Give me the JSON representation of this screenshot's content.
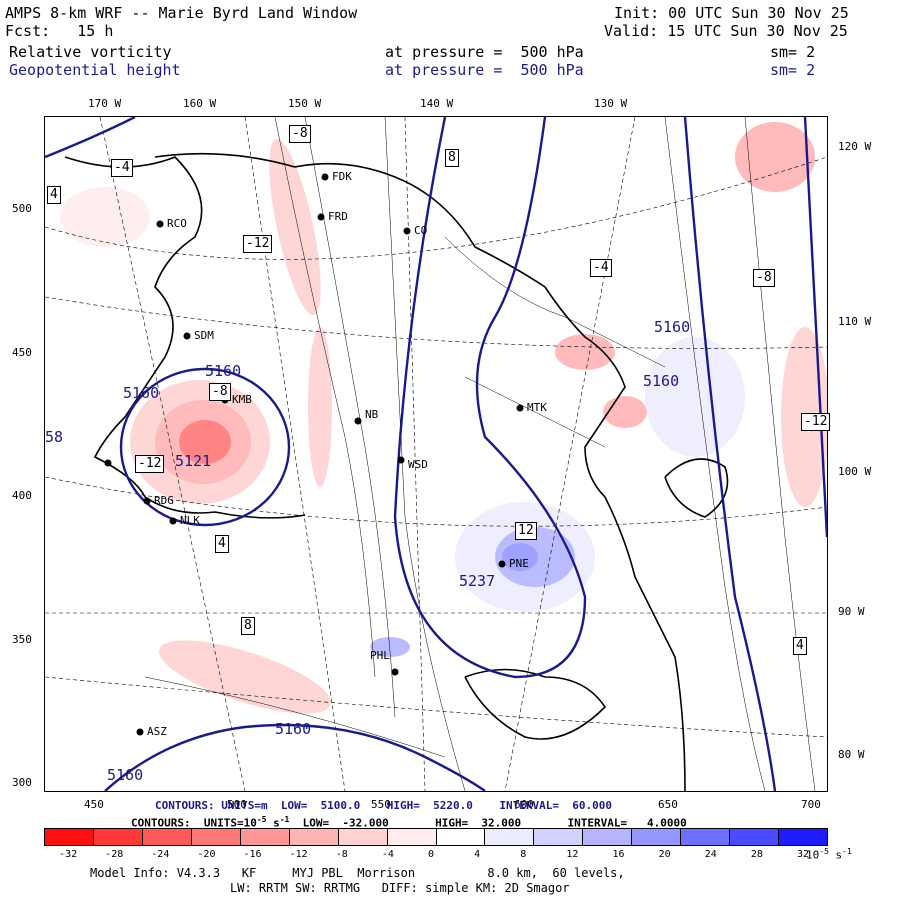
{
  "header": {
    "title": "AMPS 8-km WRF -- Marie Byrd Land Window",
    "init": "Init: 00 UTC Sun 30 Nov 25",
    "fcst": "Fcst:   15 h",
    "valid": "Valid: 15 UTC Sun 30 Nov 25",
    "field1": "Relative vorticity",
    "field1_level": "at pressure =  500 hPa",
    "field1_sm": "sm= 2",
    "field2": "Geopotential height",
    "field2_level": "at pressure =  500 hPa",
    "field2_sm": "sm= 2"
  },
  "axes": {
    "top_lon": [
      "170 W",
      "160 W",
      "150 W",
      "140 W",
      "130 W"
    ],
    "right_lon": [
      "120 W",
      "110 W",
      "100 W",
      "90 W",
      "80 W"
    ],
    "left_y": [
      "500",
      "450",
      "400",
      "350",
      "300"
    ],
    "bottom_x": [
      "450",
      "500",
      "550",
      "600",
      "650",
      "700"
    ]
  },
  "stations": [
    "FDK",
    "FRD",
    "RCO",
    "CO",
    "SDM",
    "KMB",
    "NB",
    "MTK",
    "WSD",
    "RDG",
    "NLK",
    "PNE",
    "PHL",
    "ASZ"
  ],
  "contour_labels": {
    "height_values": [
      "5160",
      "5160",
      "5160",
      "5160",
      "5160",
      "5160",
      "5121",
      "5237",
      "58"
    ],
    "vort_values": [
      "-8",
      "-4",
      "4",
      "8",
      "12",
      "-12"
    ]
  },
  "footer": {
    "contours1": "CONTOURS: UNITS=m  LOW=  5100.0    HIGH=  5220.0    INTERVAL=  60.000",
    "contours2": "CONTOURS:  UNITS=10",
    "contours2_exp": "-5",
    "contours2_unit": " s",
    "contours2_sexp": "-1",
    "contours2_rest": "  LOW=  -32.000       HIGH=  32.000       INTERVAL=   4.0000",
    "colorbar_ticks": [
      "-32",
      "-28",
      "-24",
      "-20",
      "-16",
      "-12",
      "-8",
      "-4",
      "0",
      "4",
      "8",
      "12",
      "16",
      "20",
      "24",
      "28",
      "32"
    ],
    "colorbar_unit": "10",
    "colorbar_unit_exp": "-5",
    "colorbar_unit_s": " s",
    "colorbar_unit_sexp": "-1",
    "model_info": "Model Info: V4.3.3   KF     MYJ PBL  Morrison          8.0 km,  60 levels,",
    "model_info2": "LW: RRTM SW: RRTMG   DIFF: simple KM: 2D Smagor"
  },
  "colors": {
    "colorbar": [
      "#ff1010",
      "#ff3838",
      "#ff5a5a",
      "#ff7878",
      "#ff9696",
      "#ffb4b4",
      "#ffd2d2",
      "#ffecec",
      "#ffffff",
      "#ffffff",
      "#ececff",
      "#d2d2ff",
      "#b4b4ff",
      "#9696ff",
      "#7070ff",
      "#4a4aff",
      "#1c1cff"
    ],
    "height_contour": "#1a1a8c"
  }
}
